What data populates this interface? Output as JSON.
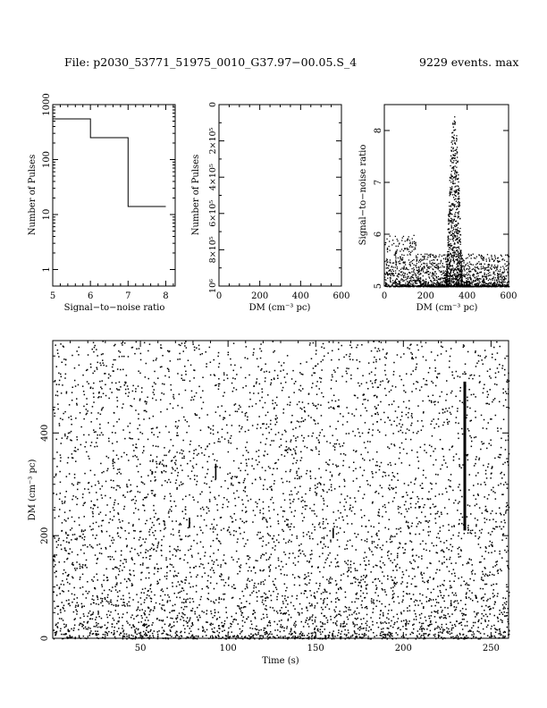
{
  "header": {
    "file_label": "File: p2030_53771_51975_0010_G37.97−00.05.S_4",
    "events_label": "9229 events. max"
  },
  "chart_data": [
    {
      "type": "line",
      "panel": "snr-histogram",
      "xlabel": "Signal−to−noise ratio",
      "ylabel": "Number of Pulses",
      "xlim": [
        5,
        8.25
      ],
      "ylim": [
        0.5,
        1000
      ],
      "yscale": "log",
      "xticks": [
        "5",
        "6",
        "7",
        "8"
      ],
      "yticks": [
        "1",
        "10",
        "100",
        "1000"
      ],
      "steps": {
        "x": [
          5,
          6,
          6,
          7,
          7,
          8
        ],
        "y": [
          550,
          550,
          250,
          250,
          14,
          14
        ]
      }
    },
    {
      "type": "line",
      "panel": "dm-histogram",
      "xlabel": "DM (cm⁻³ pc)",
      "ylabel": "Number of Pulses",
      "xlim": [
        0,
        600
      ],
      "ylim": [
        1000000,
        0
      ],
      "xticks": [
        "0",
        "200",
        "400",
        "600"
      ],
      "yticks": [
        {
          "value": 0,
          "label": "0"
        },
        {
          "value": 200000,
          "label": "2×10⁵"
        },
        {
          "value": 400000,
          "label": "4×10⁵"
        },
        {
          "value": 600000,
          "label": "6×10⁵"
        },
        {
          "value": 800000,
          "label": "8×10⁵"
        },
        {
          "value": 1000000,
          "label": "10⁶"
        }
      ]
    },
    {
      "type": "scatter",
      "panel": "snr-vs-dm",
      "xlabel": "DM (cm⁻³ pc)",
      "ylabel": "Signal−to−noise ratio",
      "xlim": [
        0,
        600
      ],
      "ylim": [
        5,
        8.5
      ],
      "xticks": [
        "0",
        "200",
        "400",
        "600"
      ],
      "yticks": [
        "5",
        "6",
        "7",
        "8"
      ],
      "clusters": [
        {
          "dm_center": 335,
          "dm_spread": 70,
          "snr_peak": 8.3
        }
      ]
    },
    {
      "type": "scatter",
      "panel": "dm-vs-time",
      "xlabel": "Time (s)",
      "ylabel": "DM (cm⁻³ pc)",
      "xlim": [
        0,
        260
      ],
      "ylim": [
        0,
        580
      ],
      "xticks": [
        "50",
        "100",
        "150",
        "200",
        "250"
      ],
      "yticks": [
        "0",
        "200",
        "400"
      ],
      "events": 9229,
      "bursts": [
        {
          "time": 235,
          "dm_low": 210,
          "dm_high": 500
        },
        {
          "time": 93,
          "dm_low": 310,
          "dm_high": 340
        },
        {
          "time": 78,
          "dm_low": 215,
          "dm_high": 235
        },
        {
          "time": 160,
          "dm_low": 195,
          "dm_high": 215
        }
      ]
    }
  ]
}
